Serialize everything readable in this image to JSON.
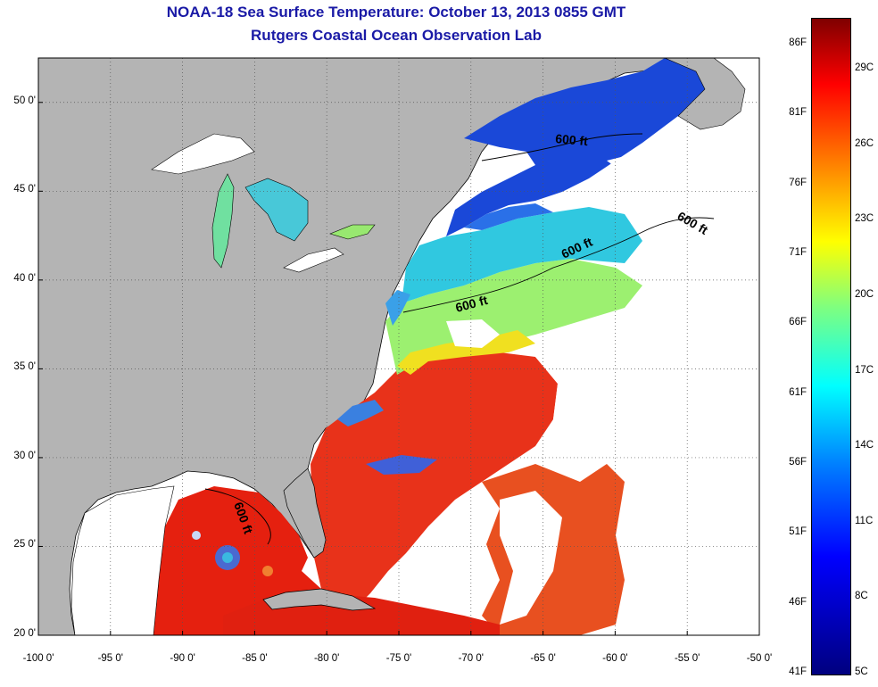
{
  "title_line1": "NOAA-18 Sea Surface Temperature:  October 13, 2013 0855 GMT",
  "title_line2": "Rutgers Coastal Ocean Observation Lab",
  "map": {
    "lon_range": [
      -100,
      -50
    ],
    "lat_range": [
      20,
      52.5
    ],
    "lat_ticks": [
      "50 0'",
      "45 0'",
      "40 0'",
      "35 0'",
      "30 0'",
      "25 0'",
      "20 0'"
    ],
    "lon_ticks": [
      "-100 0'",
      "-95 0'",
      "-90 0'",
      "-85 0'",
      "-80 0'",
      "-75 0'",
      "-70 0'",
      "-65 0'",
      "-60 0'",
      "-55 0'",
      "-50 0'"
    ],
    "grid": true,
    "land_color": "#b4b4b4",
    "cloud_color": "#ffffff",
    "contour_label": "600 ft"
  },
  "colorbar": {
    "f_labels": [
      "86F",
      "81F",
      "76F",
      "71F",
      "66F",
      "61F",
      "56F",
      "51F",
      "46F",
      "41F"
    ],
    "c_labels": [
      "29C",
      "26C",
      "23C",
      "20C",
      "17C",
      "14C",
      "11C",
      "8C",
      "5C"
    ],
    "colors": [
      "#00007f",
      "#0000ff",
      "#007fff",
      "#00ffff",
      "#7fff7f",
      "#ffff00",
      "#ff7f00",
      "#ff0000",
      "#7f0000"
    ]
  }
}
